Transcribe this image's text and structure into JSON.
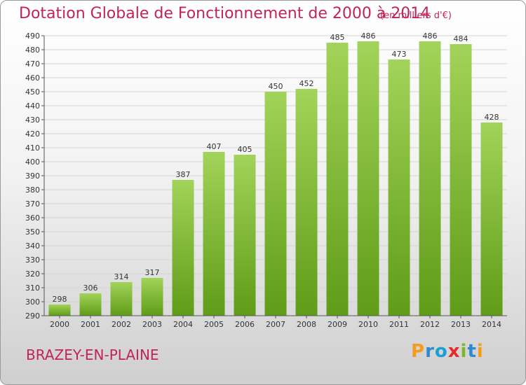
{
  "header": {
    "title": "Dotation Globale de Fonctionnement de 2000 à 2014",
    "unit": "(en milliers d'€)"
  },
  "footer": {
    "town": "BRAZEY-EN-PLAINE",
    "logo_text": "Proxiti",
    "logo_letters": [
      "P",
      "r",
      "o",
      "x",
      "i",
      "t",
      "i"
    ]
  },
  "colors": {
    "accent_text": "#c0245a",
    "bar_light": "#a2d35a",
    "bar_dark": "#5f9c17"
  },
  "chart_data": {
    "type": "bar",
    "categories": [
      "2000",
      "2001",
      "2002",
      "2003",
      "2004",
      "2005",
      "2006",
      "2007",
      "2008",
      "2009",
      "2010",
      "2011",
      "2012",
      "2013",
      "2014"
    ],
    "values": [
      298,
      306,
      314,
      317,
      387,
      407,
      405,
      450,
      452,
      485,
      486,
      473,
      486,
      484,
      428
    ],
    "ylim": [
      290,
      490
    ],
    "yticks": [
      290,
      300,
      310,
      320,
      330,
      340,
      350,
      360,
      370,
      380,
      390,
      400,
      410,
      420,
      430,
      440,
      450,
      460,
      470,
      480,
      490
    ],
    "grid": true,
    "legend": "none"
  }
}
